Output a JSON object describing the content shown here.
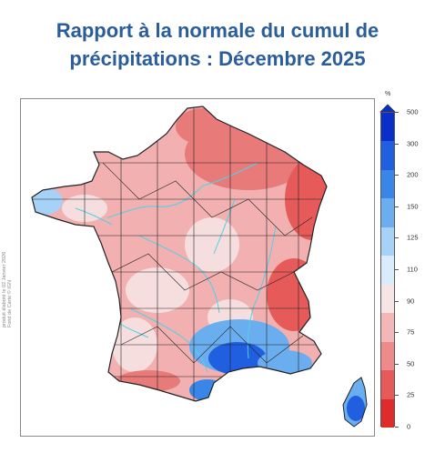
{
  "title": {
    "line1": "Rapport à la normale du cumul de",
    "line2": "précipitations : Décembre 2025"
  },
  "credits": {
    "production": "produit élaboré le 02 Janvier 2026",
    "basemap": "Fond de Carte © IGN"
  },
  "legend": {
    "unit": "%",
    "ticks": [
      "500",
      "300",
      "200",
      "150",
      "125",
      "110",
      "90",
      "75",
      "50",
      "25",
      "0"
    ],
    "colors": [
      "#0a2fc9",
      "#1f5fe0",
      "#3a86e8",
      "#6aaef0",
      "#a5d2f6",
      "#d8ecfb",
      "#f7e4e4",
      "#f4b7b7",
      "#ee8a8a",
      "#e65a5a",
      "#e02b2b"
    ]
  },
  "map": {
    "subject": "France métropolitaine",
    "colors": {
      "dry": "#e87a7a",
      "moderate": "#f2b0b0",
      "normal": "#f6dede",
      "wet": "#6aaef0",
      "very_wet": "#1f5fe0",
      "boundaries": "#222222",
      "rivers": "#4fd2e8"
    }
  }
}
